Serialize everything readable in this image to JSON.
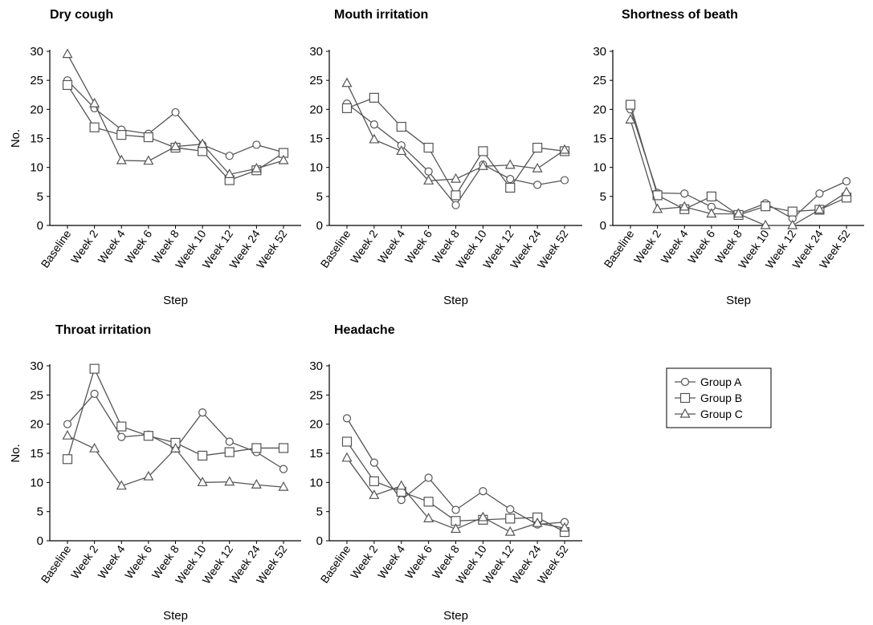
{
  "groups": [
    {
      "name": "Group A",
      "marker": "circle"
    },
    {
      "name": "Group B",
      "marker": "square"
    },
    {
      "name": "Group C",
      "marker": "triangle"
    }
  ],
  "legend": {
    "position": "right",
    "entries": [
      "Group A",
      "Group B",
      "Group C"
    ]
  },
  "line_color": "#555555",
  "chart_data": [
    {
      "type": "line",
      "title": "Dry cough",
      "xlabel": "Step",
      "ylabel": "No.",
      "ylim": [
        0,
        30
      ],
      "yticks": [
        0,
        5,
        10,
        15,
        20,
        25,
        30
      ],
      "categories": [
        "Baseline",
        "Week 2",
        "Week 4",
        "Week 6",
        "Week 8",
        "Week 10",
        "Week 12",
        "Week 24",
        "Week 52"
      ],
      "series": [
        {
          "name": "Group A",
          "marker": "circle",
          "values": [
            25,
            20.2,
            16.5,
            15.8,
            19.5,
            13.9,
            12,
            13.9,
            12.6
          ]
        },
        {
          "name": "Group B",
          "marker": "square",
          "values": [
            24.2,
            16.9,
            15.6,
            15.2,
            13.4,
            12.8,
            7.8,
            9.5,
            12.5
          ]
        },
        {
          "name": "Group C",
          "marker": "triangle",
          "values": [
            29.5,
            21,
            11.2,
            11.1,
            13.6,
            14,
            8.8,
            9.8,
            11.2
          ]
        }
      ]
    },
    {
      "type": "line",
      "title": "Mouth irritation",
      "xlabel": "Step",
      "ylabel": "",
      "ylim": [
        0,
        30
      ],
      "yticks": [
        0,
        5,
        10,
        15,
        20,
        25,
        30
      ],
      "categories": [
        "Baseline",
        "Week 2",
        "Week 4",
        "Week 6",
        "Week 8",
        "Week 10",
        "Week 12",
        "Week 24",
        "Week 52"
      ],
      "series": [
        {
          "name": "Group A",
          "marker": "circle",
          "values": [
            21,
            17.4,
            13.8,
            9.3,
            3.5,
            10.5,
            8,
            7,
            7.8
          ]
        },
        {
          "name": "Group B",
          "marker": "square",
          "values": [
            20.2,
            22,
            17,
            13.4,
            5.2,
            12.8,
            6.5,
            13.4,
            12.8
          ]
        },
        {
          "name": "Group C",
          "marker": "triangle",
          "values": [
            24.5,
            14.8,
            12.8,
            7.7,
            8,
            10.2,
            10.4,
            9.8,
            13
          ]
        }
      ]
    },
    {
      "type": "line",
      "title": "Shortness of beath",
      "xlabel": "Step",
      "ylabel": "",
      "ylim": [
        0,
        30
      ],
      "yticks": [
        0,
        5,
        10,
        15,
        20,
        25,
        30
      ],
      "categories": [
        "Baseline",
        "Week 2",
        "Week 4",
        "Week 6",
        "Week 8",
        "Week 10",
        "Week 12",
        "Week 24",
        "Week 52"
      ],
      "series": [
        {
          "name": "Group A",
          "marker": "circle",
          "values": [
            20,
            5.6,
            5.5,
            3.2,
            2,
            3.8,
            1.2,
            5.5,
            7.6
          ]
        },
        {
          "name": "Group B",
          "marker": "square",
          "values": [
            20.8,
            5.2,
            2.8,
            5,
            1.8,
            3.3,
            2.4,
            2.7,
            4.8
          ]
        },
        {
          "name": "Group C",
          "marker": "triangle",
          "values": [
            18.2,
            2.8,
            3.2,
            2,
            2,
            0,
            0,
            2.7,
            5.7
          ]
        }
      ]
    },
    {
      "type": "line",
      "title": "Throat irritation",
      "xlabel": "Step",
      "ylabel": "No.",
      "ylim": [
        0,
        30
      ],
      "yticks": [
        0,
        5,
        10,
        15,
        20,
        25,
        30
      ],
      "categories": [
        "Baseline",
        "Week 2",
        "Week 4",
        "Week 6",
        "Week 8",
        "Week 10",
        "Week 12",
        "Week 24",
        "Week 52"
      ],
      "series": [
        {
          "name": "Group A",
          "marker": "circle",
          "values": [
            20,
            25.2,
            17.8,
            18.2,
            15.8,
            22,
            17,
            15.2,
            12.3
          ]
        },
        {
          "name": "Group B",
          "marker": "square",
          "values": [
            14,
            29.5,
            19.6,
            18,
            16.8,
            14.6,
            15.2,
            15.9,
            15.9
          ]
        },
        {
          "name": "Group C",
          "marker": "triangle",
          "values": [
            18,
            15.8,
            9.4,
            11,
            15.8,
            10,
            10.1,
            9.6,
            9.2
          ]
        }
      ]
    },
    {
      "type": "line",
      "title": "Headache",
      "xlabel": "Step",
      "ylabel": "",
      "ylim": [
        0,
        30
      ],
      "yticks": [
        0,
        5,
        10,
        15,
        20,
        25,
        30
      ],
      "categories": [
        "Baseline",
        "Week 2",
        "Week 4",
        "Week 6",
        "Week 8",
        "Week 10",
        "Week 12",
        "Week 24",
        "Week 52"
      ],
      "series": [
        {
          "name": "Group A",
          "marker": "circle",
          "values": [
            21,
            13.4,
            7,
            10.8,
            5.3,
            8.5,
            5.4,
            2.8,
            3.2
          ]
        },
        {
          "name": "Group B",
          "marker": "square",
          "values": [
            17,
            10.2,
            8.4,
            6.7,
            3.4,
            3.6,
            3.8,
            4,
            1.5
          ]
        },
        {
          "name": "Group C",
          "marker": "triangle",
          "values": [
            14.2,
            7.8,
            9.4,
            3.8,
            2,
            4,
            1.5,
            3,
            2.2
          ]
        }
      ]
    }
  ]
}
